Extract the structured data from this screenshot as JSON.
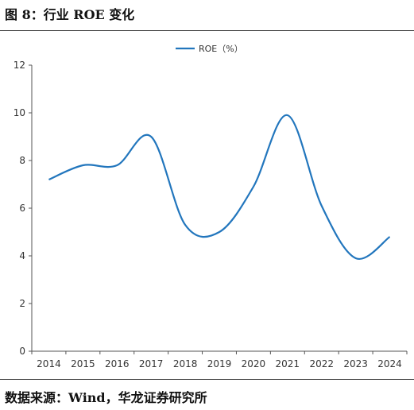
{
  "figure": {
    "title": "图 8：行业 ROE 变化",
    "source": "数据来源：Wind，华龙证券研究所"
  },
  "chart_data": {
    "type": "line",
    "categories": [
      "2014",
      "2015",
      "2016",
      "2017",
      "2018",
      "2019",
      "2020",
      "2021",
      "2022",
      "2023",
      "2024"
    ],
    "series": [
      {
        "name": "ROE（%）",
        "values": [
          7.2,
          7.8,
          7.8,
          9.0,
          5.3,
          5.0,
          6.9,
          9.9,
          6.1,
          3.9,
          4.8
        ],
        "color": "#2276bd"
      }
    ],
    "yticks": [
      0,
      2,
      4,
      6,
      8,
      10,
      12
    ],
    "ylim": [
      0,
      12
    ],
    "legend_position": "top-center",
    "grid": false,
    "smooth": true
  }
}
